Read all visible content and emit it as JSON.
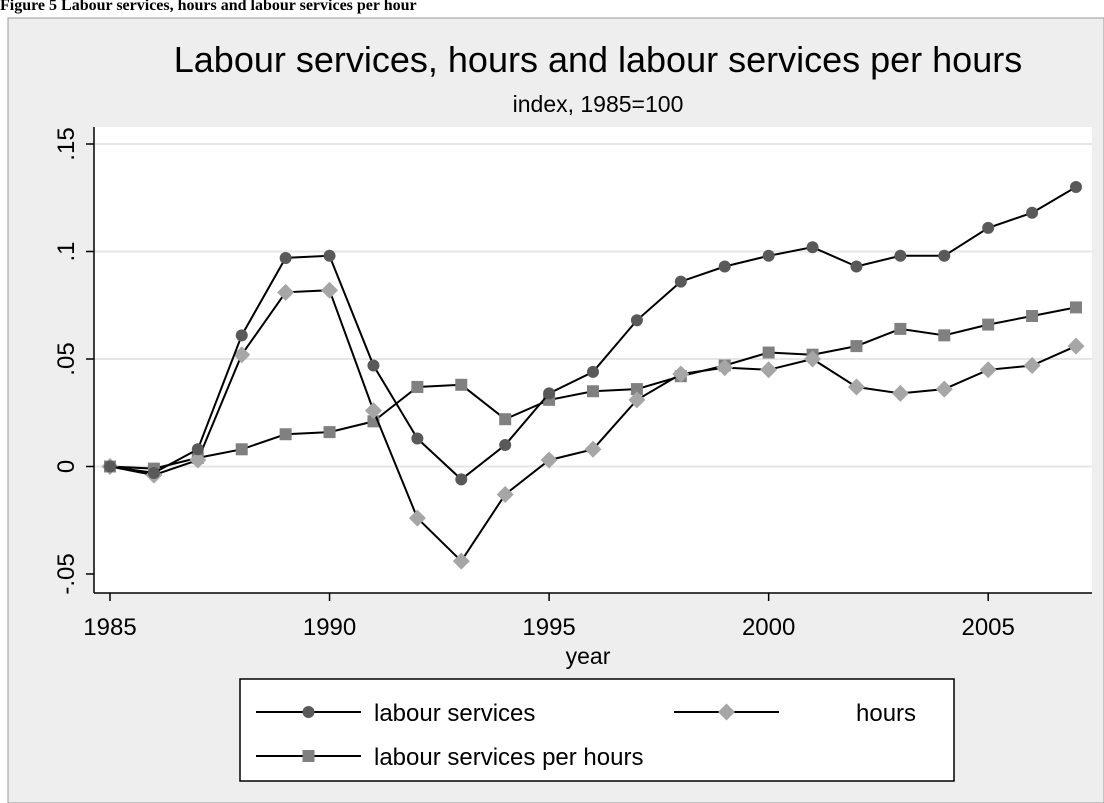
{
  "figure_caption": "Figure 5 Labour services, hours and labour services per hour",
  "chart_data": {
    "type": "line",
    "title": "Labour services, hours and labour services per hours",
    "subtitle": "index, 1985=100",
    "xlabel": "year",
    "ylabel": "",
    "xlim": [
      1985,
      2007
    ],
    "ylim": [
      -0.05,
      0.15
    ],
    "x_ticks": [
      1985,
      1990,
      1995,
      2000,
      2005
    ],
    "y_ticks": [
      -0.05,
      0,
      0.05,
      0.1,
      0.15
    ],
    "y_tick_labels": [
      "-.05",
      "0",
      ".05",
      ".1",
      ".15"
    ],
    "grid": true,
    "legend_position": "bottom",
    "x": [
      1985,
      1986,
      1987,
      1988,
      1989,
      1990,
      1991,
      1992,
      1993,
      1994,
      1995,
      1996,
      1997,
      1998,
      1999,
      2000,
      2001,
      2002,
      2003,
      2004,
      2005,
      2006,
      2007
    ],
    "series": [
      {
        "name": "labour services",
        "marker": "circle",
        "color": "#595959",
        "values": [
          0.0,
          -0.003,
          0.008,
          0.061,
          0.097,
          0.098,
          0.047,
          0.013,
          -0.006,
          0.01,
          0.034,
          0.044,
          0.068,
          0.086,
          0.093,
          0.098,
          0.102,
          0.093,
          0.098,
          0.098,
          0.111,
          0.118,
          0.13
        ]
      },
      {
        "name": "hours",
        "marker": "diamond",
        "color": "#a6a6a6",
        "values": [
          0.0,
          -0.004,
          0.003,
          0.052,
          0.081,
          0.082,
          0.026,
          -0.024,
          -0.044,
          -0.013,
          0.003,
          0.008,
          0.031,
          0.043,
          0.046,
          0.045,
          0.05,
          0.037,
          0.034,
          0.036,
          0.045,
          0.047,
          0.056
        ]
      },
      {
        "name": "labour services per hours",
        "marker": "square",
        "color": "#808080",
        "values": [
          0.0,
          -0.001,
          0.004,
          0.008,
          0.015,
          0.016,
          0.021,
          0.037,
          0.038,
          0.022,
          0.031,
          0.035,
          0.036,
          0.042,
          0.047,
          0.053,
          0.052,
          0.056,
          0.064,
          0.061,
          0.066,
          0.07,
          0.074
        ]
      }
    ]
  }
}
